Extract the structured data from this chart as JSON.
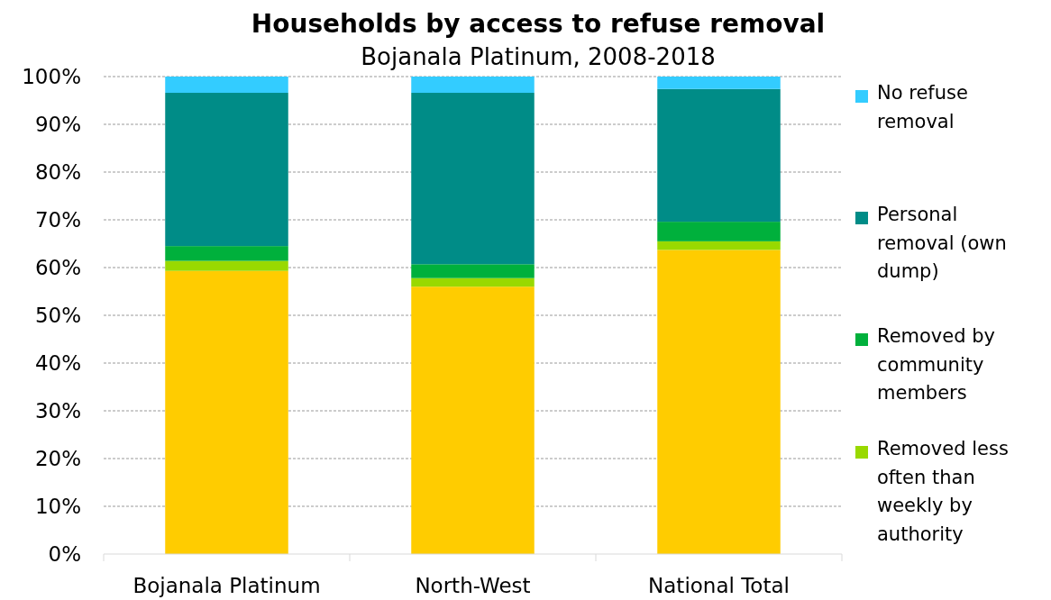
{
  "chart_data": {
    "type": "bar",
    "title": "Households by access to refuse removal",
    "subtitle": "Bojanala Platinum, 2008-2018",
    "categories": [
      "Bojanala Platinum",
      "North-West",
      "National Total"
    ],
    "stacked": true,
    "series": [
      {
        "color": "#ffcc00",
        "values": [
          59.3,
          56.0,
          63.7
        ]
      },
      {
        "name": "Removed less often than weekly by authority",
        "color": "#99d900",
        "values": [
          2.1,
          1.8,
          1.8
        ]
      },
      {
        "name": "Removed by community members",
        "color": "#00b03c",
        "values": [
          3.1,
          2.9,
          4.1
        ]
      },
      {
        "name": "Personal removal (own dump)",
        "color": "#008c87",
        "values": [
          32.1,
          35.9,
          27.8
        ]
      },
      {
        "name": "No refuse removal",
        "color": "#33ccff",
        "values": [
          3.4,
          3.4,
          2.6
        ]
      }
    ],
    "ylim": [
      0,
      100
    ],
    "yticks": [
      {
        "value": 0,
        "label": "0%"
      },
      {
        "value": 10,
        "label": "10%"
      },
      {
        "value": 20,
        "label": "20%"
      },
      {
        "value": 30,
        "label": "30%"
      },
      {
        "value": 40,
        "label": "40%"
      },
      {
        "value": 50,
        "label": "50%"
      },
      {
        "value": 60,
        "label": "60%"
      },
      {
        "value": 70,
        "label": "70%"
      },
      {
        "value": 80,
        "label": "80%"
      },
      {
        "value": 90,
        "label": "90%"
      },
      {
        "value": 100,
        "label": "100%"
      }
    ],
    "grid": "y",
    "legend": "right"
  }
}
